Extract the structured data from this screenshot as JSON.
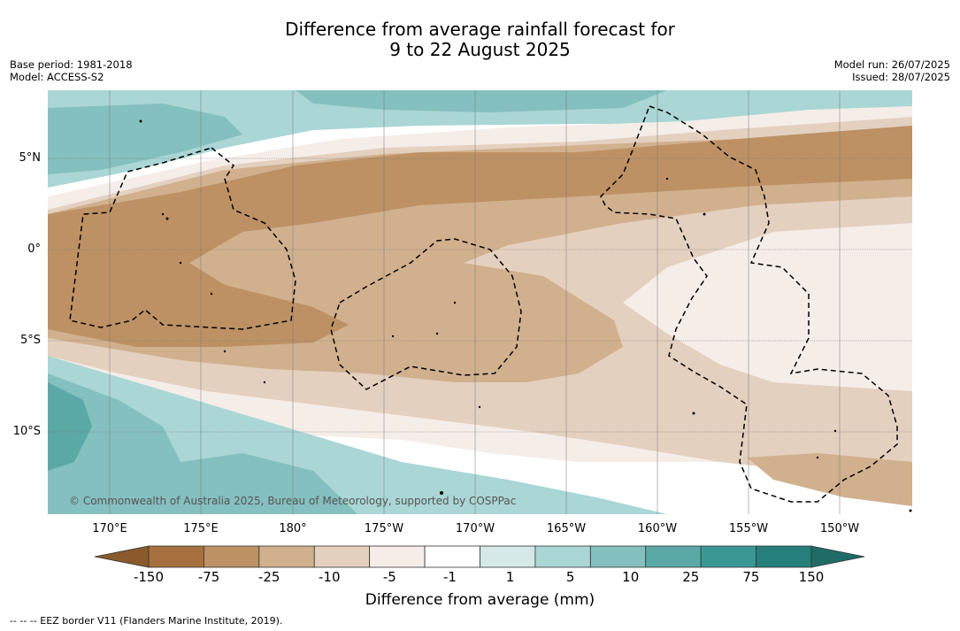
{
  "title": {
    "line1": "Difference from average rainfall forecast for",
    "line2": "9 to 22 August 2025"
  },
  "meta": {
    "base_period": "Base period: 1981-2018",
    "model": "Model: ACCESS-S2",
    "model_run": "Model run: 26/07/2025",
    "issued": "Issued: 28/07/2025"
  },
  "map": {
    "lon_labels": [
      "170°E",
      "175°E",
      "180°",
      "175°W",
      "170°W",
      "165°W",
      "160°W",
      "155°W",
      "150°W"
    ],
    "lat_labels": [
      "5°N",
      "0°",
      "5°S",
      "10°S"
    ],
    "copyright": "© Commonwealth of Australia 2025, Bureau of Meteorology, supported by COSPPac"
  },
  "colorbar": {
    "ticks": [
      "-150",
      "-75",
      "-25",
      "-10",
      "-5",
      "-1",
      "1",
      "5",
      "10",
      "25",
      "75",
      "150"
    ],
    "colors": [
      "#a6713e",
      "#bd9164",
      "#d1b08e",
      "#e4d0bf",
      "#f5ede8",
      "#ffffff",
      "#d4e9e8",
      "#aad6d5",
      "#84c0bf",
      "#5aa9a6",
      "#3a9894",
      "#257f7a"
    ],
    "label": "Difference from average (mm)"
  },
  "footer": "--  --  -- EEZ border V11 (Flanders Marine Institute, 2019)."
}
